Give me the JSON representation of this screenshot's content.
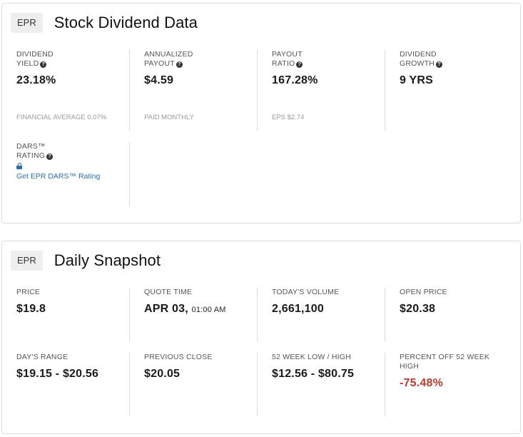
{
  "dividend_card": {
    "ticker": "EPR",
    "title": "Stock Dividend Data",
    "metrics": [
      {
        "label_line1": "DIVIDEND",
        "label_line2": "YIELD",
        "value": "23.18%",
        "sub": "FINANCIAL AVERAGE 0.07%"
      },
      {
        "label_line1": "ANNUALIZED",
        "label_line2": "PAYOUT",
        "value": "$4.59",
        "sub": "PAID MONTHLY"
      },
      {
        "label_line1": "PAYOUT",
        "label_line2": "RATIO",
        "value": "167.28%",
        "sub": "EPS $2.74"
      },
      {
        "label_line1": "DIVIDEND",
        "label_line2": "GROWTH",
        "value": "9 YRS",
        "sub": ""
      }
    ],
    "dars": {
      "label_line1": "DARS™",
      "label_line2": "RATING",
      "link_text": "Get EPR DARS™ Rating"
    }
  },
  "snapshot_card": {
    "ticker": "EPR",
    "title": "Daily Snapshot",
    "row1": [
      {
        "label": "PRICE",
        "value": "$19.8"
      },
      {
        "label": "QUOTE TIME",
        "value": "APR 03,",
        "value_small": "01:00 AM"
      },
      {
        "label": "TODAY'S VOLUME",
        "value": "2,661,100"
      },
      {
        "label": "OPEN PRICE",
        "value": "$20.38"
      }
    ],
    "row2": [
      {
        "label": "DAY'S RANGE",
        "value": "$19.15 - $20.56"
      },
      {
        "label": "PREVIOUS CLOSE",
        "value": "$20.05"
      },
      {
        "label": "52 WEEK LOW / HIGH",
        "value": "$12.56 - $80.75"
      },
      {
        "label": "PERCENT OFF 52 WEEK HIGH",
        "value": "-75.48%"
      }
    ]
  },
  "colors": {
    "negative": "#c0392b",
    "link": "#2a6db0",
    "border": "#dcdcdc"
  }
}
